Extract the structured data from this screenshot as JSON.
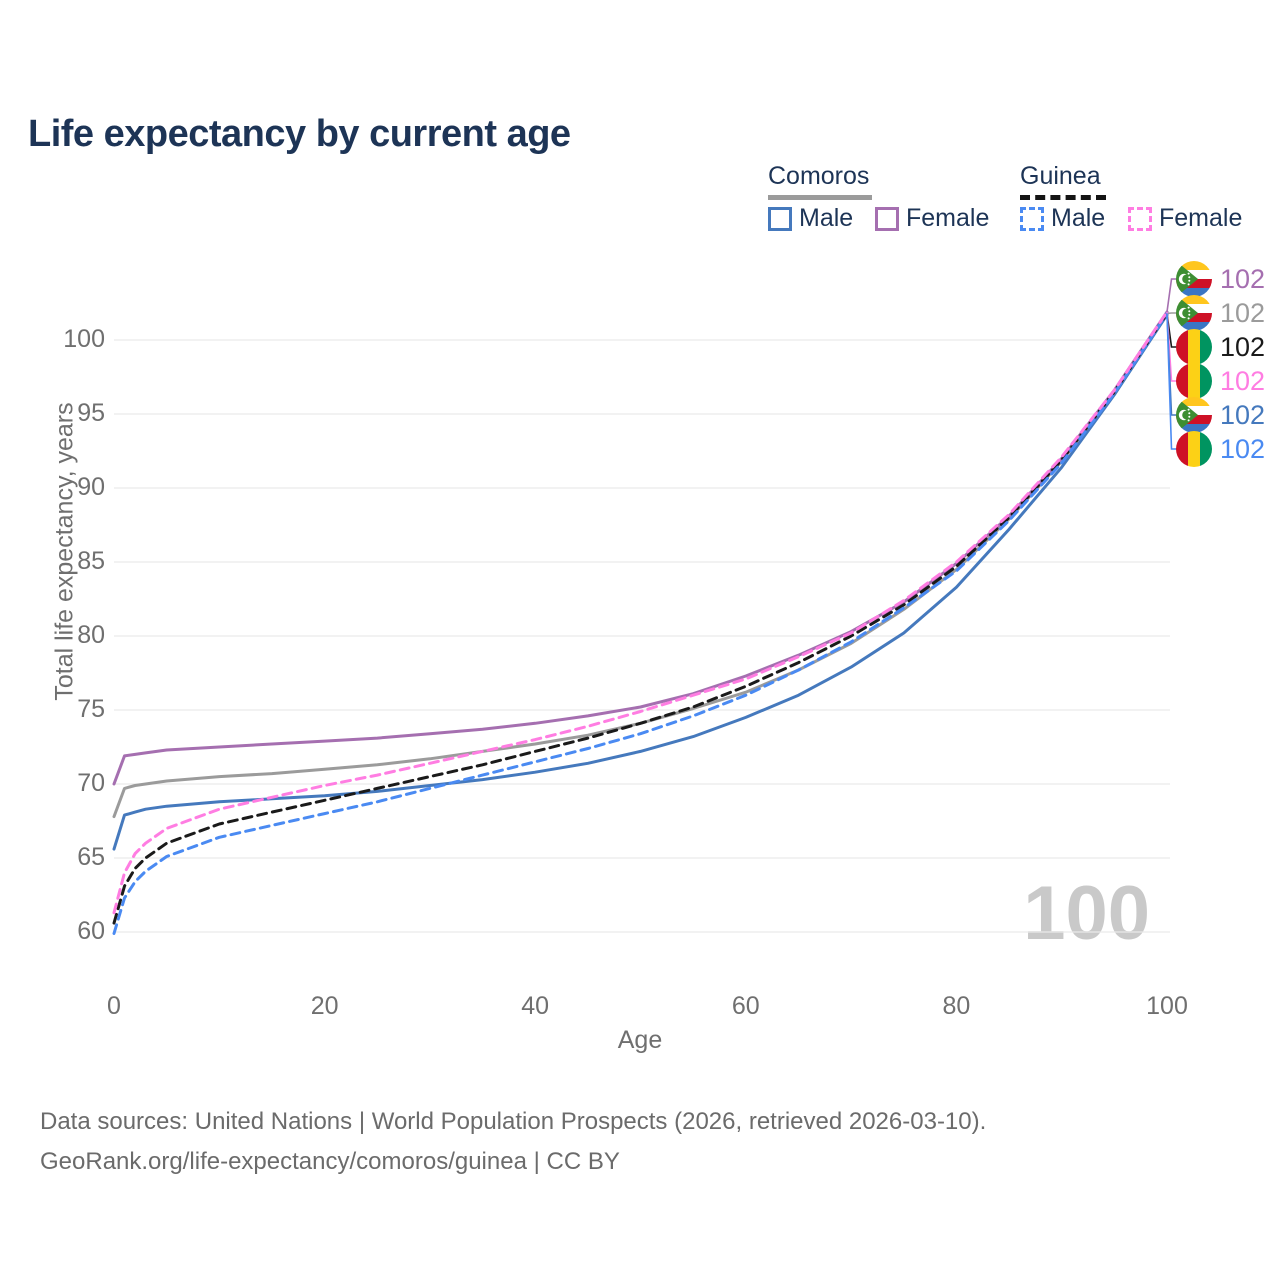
{
  "title": "Life expectancy by current age",
  "legend": {
    "groups": [
      {
        "name": "Comoros",
        "line_style": "solid",
        "underline_color": "#9b9b9b",
        "items": [
          {
            "label": "Male",
            "color": "#4579bd"
          },
          {
            "label": "Female",
            "color": "#a56fb0"
          }
        ]
      },
      {
        "name": "Guinea",
        "line_style": "dashed",
        "underline_color": "#141414",
        "items": [
          {
            "label": "Male",
            "color": "#4a8af2"
          },
          {
            "label": "Female",
            "color": "#ff7de2"
          }
        ]
      }
    ]
  },
  "watermark_age": "100",
  "end_labels": [
    {
      "flag": "comoros",
      "series": "Comoros Female",
      "value": "102",
      "color": "#a56fb0"
    },
    {
      "flag": "comoros",
      "series": "Comoros Both sexes",
      "value": "102",
      "color": "#9b9b9b"
    },
    {
      "flag": "guinea",
      "series": "Guinea Both sexes",
      "value": "102",
      "color": "#1a1a1a"
    },
    {
      "flag": "guinea",
      "series": "Guinea Female",
      "value": "102",
      "color": "#ff7de2"
    },
    {
      "flag": "comoros",
      "series": "Comoros Male",
      "value": "102",
      "color": "#4579bd"
    },
    {
      "flag": "guinea",
      "series": "Guinea Male",
      "value": "102",
      "color": "#4a8af2"
    }
  ],
  "footer": {
    "line1": "Data sources: United Nations | World Population Prospects (2026, retrieved 2026-03-10).",
    "line2": "GeoRank.org/life-expectancy/comoros/guinea | CC BY"
  },
  "chart_data": {
    "type": "line",
    "title": "Life expectancy by current age",
    "xlabel": "Age",
    "ylabel": "Total life expectancy, years",
    "x_ticks": [
      0,
      20,
      40,
      60,
      80,
      100
    ],
    "y_ticks": [
      60,
      65,
      70,
      75,
      80,
      85,
      90,
      95,
      100
    ],
    "xlim": [
      0,
      100
    ],
    "ylim": [
      58.5,
      103
    ],
    "grid": "horizontal",
    "legend_position": "top-right",
    "ages": [
      0,
      1,
      2,
      3,
      5,
      10,
      15,
      20,
      25,
      30,
      35,
      40,
      45,
      50,
      55,
      60,
      65,
      70,
      75,
      80,
      85,
      90,
      95,
      100
    ],
    "series": [
      {
        "name": "Comoros Both sexes",
        "country": "Comoros",
        "sex": "Both",
        "color": "#9b9b9b",
        "dash": "solid",
        "values": [
          67.8,
          69.7,
          69.9,
          70.0,
          70.2,
          70.5,
          70.7,
          71.0,
          71.3,
          71.7,
          72.2,
          72.7,
          73.3,
          74.1,
          75.1,
          76.2,
          77.7,
          79.5,
          81.8,
          84.5,
          87.9,
          91.8,
          96.5,
          101.8
        ]
      },
      {
        "name": "Comoros Male",
        "country": "Comoros",
        "sex": "Male",
        "color": "#4579bd",
        "dash": "solid",
        "values": [
          65.6,
          67.9,
          68.1,
          68.3,
          68.5,
          68.8,
          69.0,
          69.2,
          69.5,
          69.9,
          70.3,
          70.8,
          71.4,
          72.2,
          73.2,
          74.5,
          76.0,
          77.9,
          80.2,
          83.3,
          87.2,
          91.4,
          96.3,
          101.7
        ]
      },
      {
        "name": "Comoros Female",
        "country": "Comoros",
        "sex": "Female",
        "color": "#a56fb0",
        "dash": "solid",
        "values": [
          70.0,
          71.9,
          72.0,
          72.1,
          72.3,
          72.5,
          72.7,
          72.9,
          73.1,
          73.4,
          73.7,
          74.1,
          74.6,
          75.2,
          76.1,
          77.3,
          78.7,
          80.3,
          82.3,
          84.9,
          88.1,
          92.0,
          96.6,
          101.9
        ]
      },
      {
        "name": "Guinea Both sexes",
        "country": "Guinea",
        "sex": "Both",
        "color": "#1a1a1a",
        "dash": "dashed",
        "values": [
          60.6,
          63.1,
          64.3,
          65.0,
          66.0,
          67.3,
          68.1,
          68.9,
          69.7,
          70.5,
          71.3,
          72.2,
          73.1,
          74.1,
          75.2,
          76.6,
          78.2,
          80.0,
          82.1,
          84.7,
          88.0,
          91.9,
          96.5,
          101.8
        ]
      },
      {
        "name": "Guinea Male",
        "country": "Guinea",
        "sex": "Male",
        "color": "#4a8af2",
        "dash": "dashed",
        "values": [
          59.9,
          62.3,
          63.4,
          64.1,
          65.1,
          66.4,
          67.2,
          68.0,
          68.8,
          69.7,
          70.6,
          71.5,
          72.4,
          73.4,
          74.6,
          76.0,
          77.7,
          79.6,
          81.9,
          84.4,
          87.8,
          91.7,
          96.4,
          101.8
        ]
      },
      {
        "name": "Guinea Female",
        "country": "Guinea",
        "sex": "Female",
        "color": "#ff7de2",
        "dash": "dashed",
        "values": [
          61.3,
          64.0,
          65.3,
          66.0,
          67.0,
          68.3,
          69.1,
          69.9,
          70.6,
          71.4,
          72.2,
          73.0,
          73.9,
          74.9,
          76.0,
          77.1,
          78.6,
          80.2,
          82.4,
          85.0,
          88.2,
          92.1,
          96.6,
          101.9
        ]
      }
    ]
  }
}
